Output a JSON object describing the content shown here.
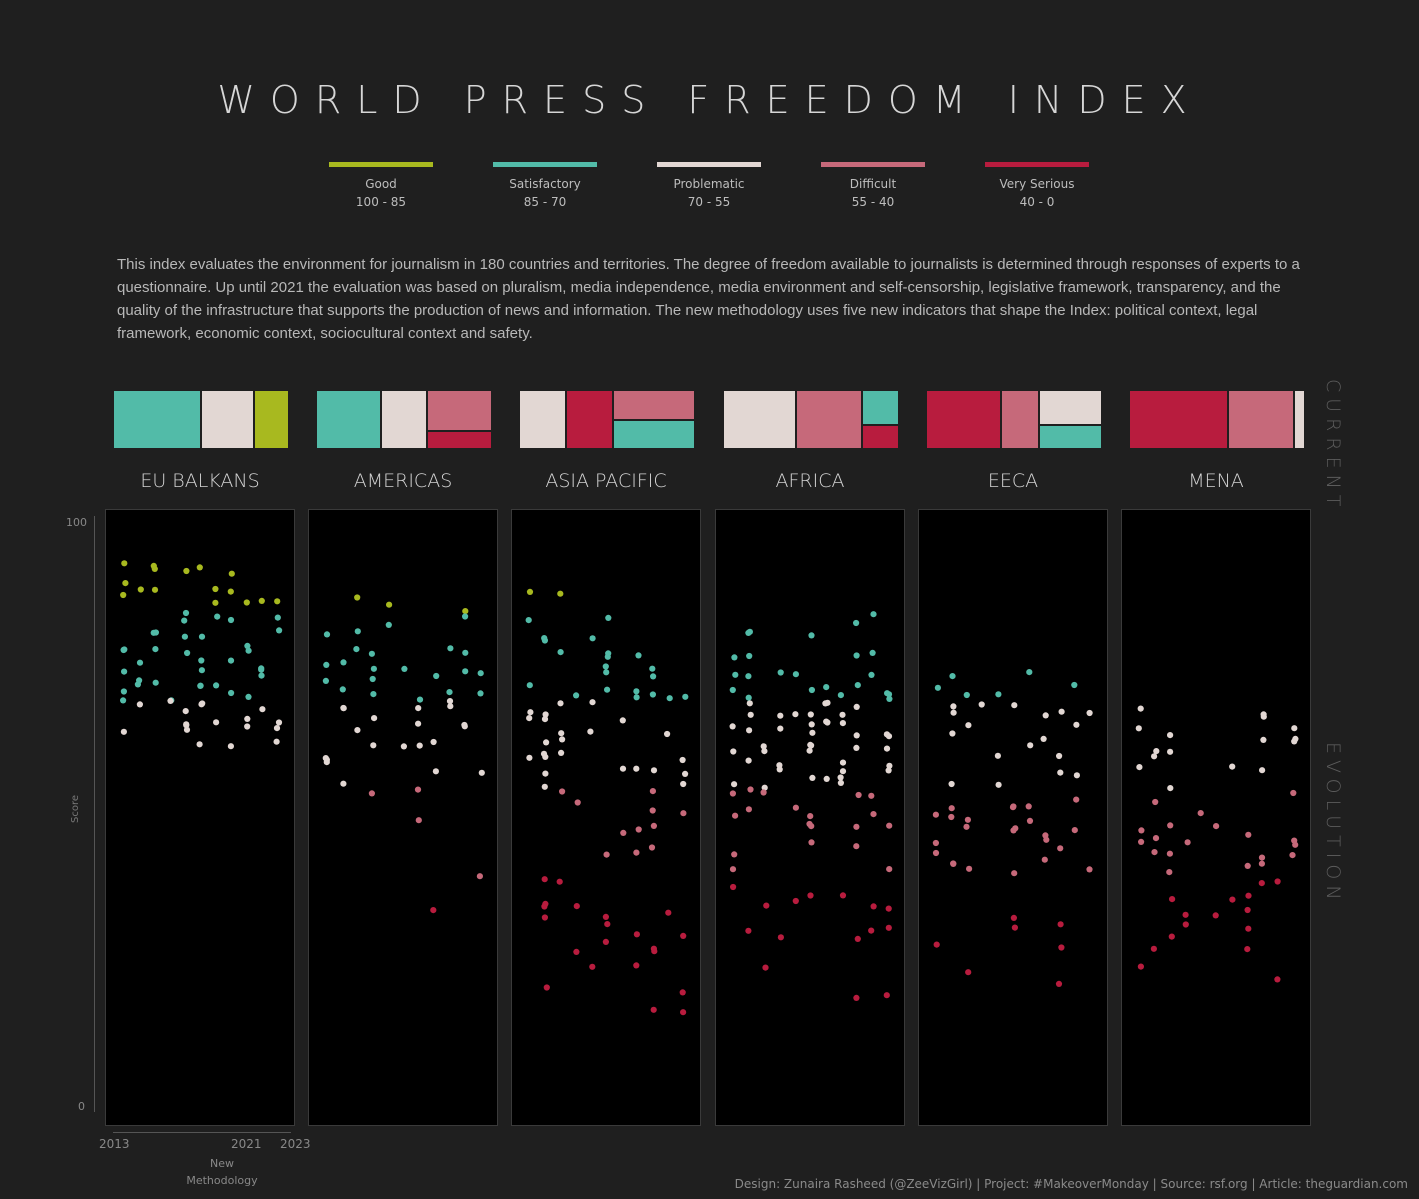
{
  "title": "WORLD PRESS FREEDOM INDEX",
  "legend": [
    {
      "label": "Good",
      "range": "100 - 85",
      "color": "#a8b91f"
    },
    {
      "label": "Satisfactory",
      "range": "85 - 70",
      "color": "#52bba8"
    },
    {
      "label": "Problematic",
      "range": "70 - 55",
      "color": "#e2d7d3"
    },
    {
      "label": "Difficult",
      "range": "55 - 40",
      "color": "#c6697a"
    },
    {
      "label": "Very Serious",
      "range": "40 - 0",
      "color": "#b81c3e"
    }
  ],
  "description": "This index evaluates the environment for journalism in 180 countries and territories. The degree of freedom available to journalists is determined through responses of experts to a questionnaire. Up until 2021 the evaluation was based on pluralism, media independence, media environment and self-censorship, legislative framework, transparency, and the quality of the infrastructure that supports the production of news and information. The new methodology uses five new indicators that shape the Index: political context, legal framework, economic context, sociocultural context and safety.",
  "side_labels": {
    "current": "CURRENT",
    "evolution": "EVOLUTION"
  },
  "axis": {
    "y_label": "Score",
    "y_top": "100",
    "y_bottom": "0",
    "x_start": "2013",
    "x_mid": "2021",
    "x_end": "2023",
    "x_note": "New Methodology"
  },
  "footer": "Design: Zunaira Rasheed (@ZeeVizGirl) | Project: #MakeoverMonday | Source: rsf.org | Article: theguardian.com",
  "chart_data": {
    "type": "scatter",
    "x_range": [
      2013,
      2023
    ],
    "ylim": [
      0,
      100
    ],
    "category_colors": {
      "Good": "#a8b91f",
      "Satisfactory": "#52bba8",
      "Problematic": "#e2d7d3",
      "Difficult": "#c6697a",
      "Very Serious": "#b81c3e"
    },
    "regions": [
      {
        "name": "EU BALKANS",
        "current_counts": {
          "Satisfactory": 25,
          "Problematic": 15,
          "Good": 10
        },
        "levels": [
          [
            92.5,
            6
          ],
          [
            89,
            5
          ],
          [
            87,
            5
          ],
          [
            84.5,
            5
          ],
          [
            81,
            5
          ],
          [
            79,
            6
          ],
          [
            76,
            7
          ],
          [
            73.5,
            7
          ],
          [
            71,
            6
          ],
          [
            68.5,
            5
          ],
          [
            66,
            5
          ],
          [
            65,
            4
          ],
          [
            63,
            3
          ]
        ]
      },
      {
        "name": "AMERICAS",
        "current_counts": {
          "Satisfactory": 10,
          "Problematic": 7,
          "Difficult": 7,
          "Very Serious": 3
        },
        "levels": [
          [
            87,
            2
          ],
          [
            85,
            2
          ],
          [
            82,
            3
          ],
          [
            79,
            4
          ],
          [
            76,
            4
          ],
          [
            74,
            5
          ],
          [
            71,
            5
          ],
          [
            69,
            5
          ],
          [
            66,
            5
          ],
          [
            63,
            4
          ],
          [
            60,
            3
          ],
          [
            57,
            3
          ],
          [
            54,
            2
          ],
          [
            50,
            1
          ],
          [
            40,
            1
          ],
          [
            34,
            1
          ]
        ]
      },
      {
        "name": "ASIA PACIFIC",
        "current_counts": {
          "Problematic": 8,
          "Very Serious": 8,
          "Difficult": 7,
          "Satisfactory": 7
        },
        "levels": [
          [
            89,
            2
          ],
          [
            84,
            2
          ],
          [
            81,
            3
          ],
          [
            78,
            4
          ],
          [
            75,
            4
          ],
          [
            72,
            5
          ],
          [
            70,
            5
          ],
          [
            67,
            5
          ],
          [
            64,
            5
          ],
          [
            61,
            5
          ],
          [
            58,
            5
          ],
          [
            55,
            4
          ],
          [
            52,
            3
          ],
          [
            48,
            3
          ],
          [
            44,
            3
          ],
          [
            40,
            2
          ],
          [
            36,
            3
          ],
          [
            33,
            4
          ],
          [
            30,
            3
          ],
          [
            27,
            3
          ],
          [
            24,
            2
          ],
          [
            21,
            2
          ],
          [
            18,
            2
          ]
        ]
      },
      {
        "name": "AFRICA",
        "current_counts": {
          "Problematic": 20,
          "Difficult": 18,
          "Satisfactory": 6,
          "Very Serious": 4
        },
        "levels": [
          [
            84,
            2
          ],
          [
            81,
            3
          ],
          [
            78,
            4
          ],
          [
            75,
            5
          ],
          [
            72,
            6
          ],
          [
            70,
            7
          ],
          [
            67,
            8
          ],
          [
            65,
            8
          ],
          [
            62,
            8
          ],
          [
            59,
            7
          ],
          [
            56,
            6
          ],
          [
            54,
            5
          ],
          [
            51,
            5
          ],
          [
            48,
            4
          ],
          [
            45,
            3
          ],
          [
            42,
            2
          ],
          [
            38,
            3
          ],
          [
            35,
            4
          ],
          [
            32,
            3
          ],
          [
            29,
            2
          ],
          [
            24,
            1
          ],
          [
            19,
            2
          ]
        ]
      },
      {
        "name": "EECA",
        "current_counts": {
          "Very Serious": 6,
          "Difficult": 3,
          "Problematic": 3,
          "Satisfactory": 2
        },
        "levels": [
          [
            74,
            2
          ],
          [
            72,
            3
          ],
          [
            70,
            4
          ],
          [
            68,
            4
          ],
          [
            65,
            3
          ],
          [
            63,
            2
          ],
          [
            60,
            2
          ],
          [
            58,
            2
          ],
          [
            55,
            2
          ],
          [
            53,
            3
          ],
          [
            51,
            4
          ],
          [
            49,
            4
          ],
          [
            47,
            4
          ],
          [
            45,
            3
          ],
          [
            43,
            3
          ],
          [
            41,
            3
          ],
          [
            34,
            1
          ],
          [
            31,
            2
          ],
          [
            28,
            2
          ],
          [
            24,
            1
          ],
          [
            21,
            1
          ]
        ]
      },
      {
        "name": "MENA",
        "current_counts": {
          "Very Serious": 9,
          "Difficult": 6,
          "Problematic": 1
        },
        "levels": [
          [
            68,
            3
          ],
          [
            65,
            3
          ],
          [
            63,
            3
          ],
          [
            61,
            3
          ],
          [
            58,
            3
          ],
          [
            55,
            2
          ],
          [
            52,
            2
          ],
          [
            49,
            3
          ],
          [
            47,
            4
          ],
          [
            45,
            4
          ],
          [
            43,
            4
          ],
          [
            40,
            3
          ],
          [
            37,
            3
          ],
          [
            34,
            3
          ],
          [
            31,
            3
          ],
          [
            28,
            2
          ],
          [
            25,
            1
          ],
          [
            22,
            1
          ]
        ]
      }
    ]
  }
}
